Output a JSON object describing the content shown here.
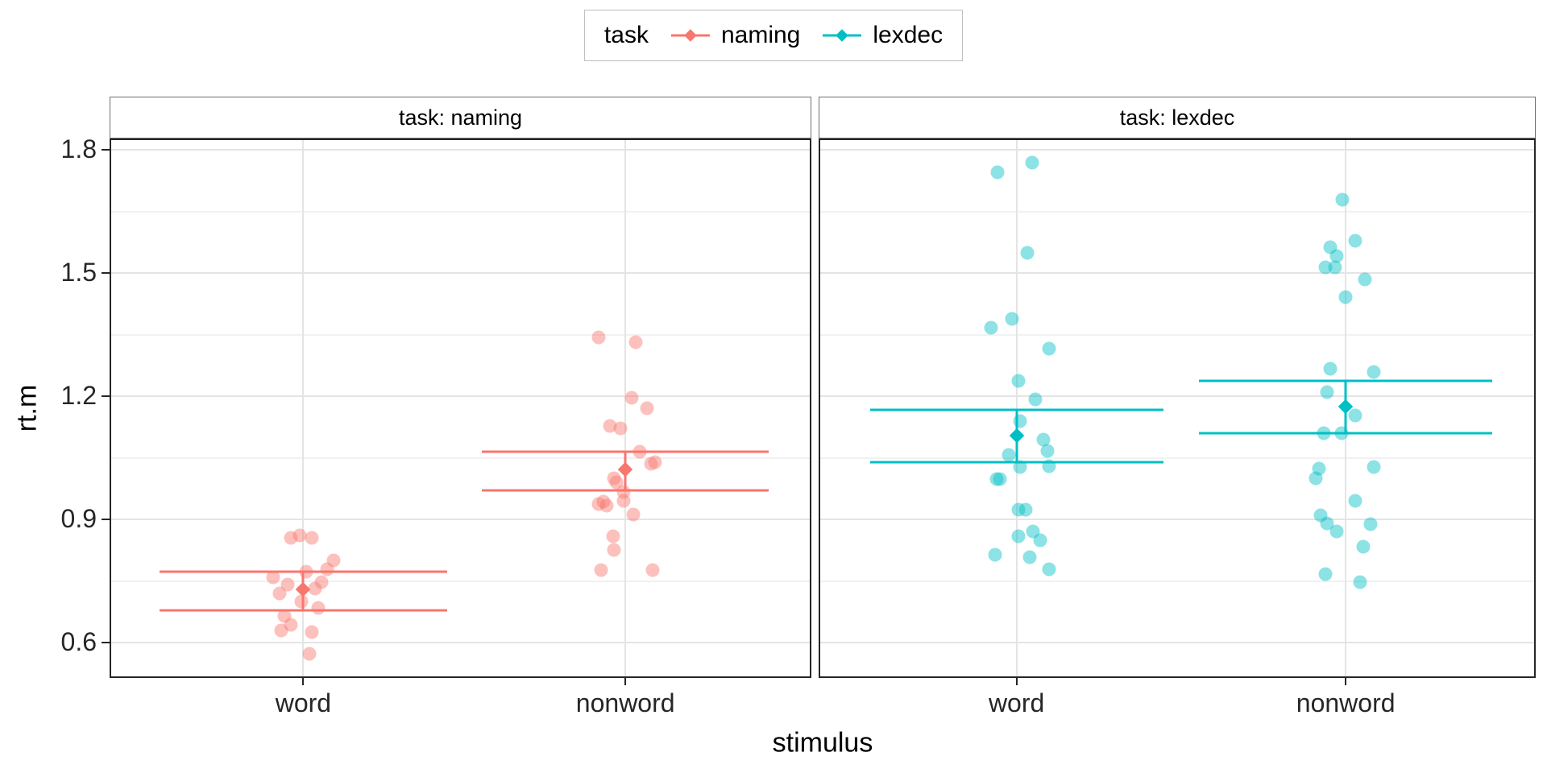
{
  "chart_data": {
    "type": "scatter",
    "subtype": "jittered-points-with-mean-ci",
    "title": "",
    "xlabel": "stimulus",
    "ylabel": "rt.m",
    "facet_variable": "task",
    "legend_title": "task",
    "legend_position": "top",
    "x_categories": [
      "word",
      "nonword"
    ],
    "y_ticks": [
      0.6,
      0.9,
      1.2,
      1.5,
      1.8
    ],
    "y_minor_ticks": [
      0.75,
      1.05,
      1.35,
      1.65
    ],
    "ylim": [
      0.51,
      1.83
    ],
    "grid": true,
    "series": [
      {
        "name": "naming",
        "facet_label": "task: naming",
        "color": "#F8766D",
        "groups": [
          {
            "x": "word",
            "mean": 0.729,
            "ci_low": 0.678,
            "ci_high": 0.773,
            "points": [
              [
                0.861,
                -0.01
              ],
              [
                0.855,
                -0.038
              ],
              [
                0.855,
                0.028
              ],
              [
                0.8,
                0.095
              ],
              [
                0.779,
                0.075
              ],
              [
                0.773,
                0.01
              ],
              [
                0.759,
                -0.095
              ],
              [
                0.747,
                0.058
              ],
              [
                0.741,
                -0.048
              ],
              [
                0.731,
                0.038
              ],
              [
                0.72,
                -0.075
              ],
              [
                0.7,
                -0.005
              ],
              [
                0.684,
                0.048
              ],
              [
                0.665,
                -0.058
              ],
              [
                0.643,
                -0.038
              ],
              [
                0.629,
                -0.068
              ],
              [
                0.625,
                0.028
              ],
              [
                0.572,
                0.02
              ]
            ]
          },
          {
            "x": "nonword",
            "mean": 1.021,
            "ci_low": 0.971,
            "ci_high": 1.065,
            "points": [
              [
                1.343,
                -0.085
              ],
              [
                1.331,
                0.033
              ],
              [
                1.196,
                0.02
              ],
              [
                1.171,
                0.068
              ],
              [
                1.128,
                -0.048
              ],
              [
                1.122,
                -0.015
              ],
              [
                1.065,
                0.045
              ],
              [
                1.039,
                0.093
              ],
              [
                1.035,
                0.08
              ],
              [
                1.0,
                -0.035
              ],
              [
                0.99,
                -0.028
              ],
              [
                0.967,
                -0.005
              ],
              [
                0.945,
                -0.005
              ],
              [
                0.943,
                -0.068
              ],
              [
                0.937,
                -0.083
              ],
              [
                0.933,
                -0.058
              ],
              [
                0.912,
                0.025
              ],
              [
                0.859,
                -0.038
              ],
              [
                0.825,
                -0.035
              ],
              [
                0.776,
                -0.075
              ],
              [
                0.776,
                0.085
              ]
            ]
          }
        ]
      },
      {
        "name": "lexdec",
        "facet_label": "task: lexdec",
        "color": "#00BFC4",
        "groups": [
          {
            "x": "word",
            "mean": 1.103,
            "ci_low": 1.039,
            "ci_high": 1.167,
            "points": [
              [
                1.769,
                0.047
              ],
              [
                1.745,
                -0.059
              ],
              [
                1.549,
                0.032
              ],
              [
                1.388,
                -0.015
              ],
              [
                1.367,
                -0.079
              ],
              [
                1.316,
                0.101
              ],
              [
                1.237,
                0.005
              ],
              [
                1.192,
                0.057
              ],
              [
                1.139,
                0.012
              ],
              [
                1.094,
                0.082
              ],
              [
                1.067,
                0.094
              ],
              [
                1.057,
                -0.025
              ],
              [
                1.029,
                0.101
              ],
              [
                1.027,
                0.012
              ],
              [
                0.998,
                -0.062
              ],
              [
                0.998,
                -0.052
              ],
              [
                0.924,
                0.005
              ],
              [
                0.924,
                0.027
              ],
              [
                0.871,
                0.05
              ],
              [
                0.859,
                0.005
              ],
              [
                0.849,
                0.072
              ],
              [
                0.814,
                -0.067
              ],
              [
                0.808,
                0.04
              ],
              [
                0.779,
                0.101
              ]
            ]
          },
          {
            "x": "nonword",
            "mean": 1.174,
            "ci_low": 1.11,
            "ci_high": 1.237,
            "points": [
              [
                1.678,
                -0.01
              ],
              [
                1.578,
                0.03
              ],
              [
                1.562,
                -0.047
              ],
              [
                1.541,
                -0.027
              ],
              [
                1.513,
                -0.062
              ],
              [
                1.513,
                -0.032
              ],
              [
                1.484,
                0.059
              ],
              [
                1.441,
                0.0
              ],
              [
                1.266,
                -0.047
              ],
              [
                1.258,
                0.087
              ],
              [
                1.21,
                -0.057
              ],
              [
                1.153,
                0.03
              ],
              [
                1.11,
                -0.067
              ],
              [
                1.11,
                -0.012
              ],
              [
                1.027,
                0.087
              ],
              [
                1.023,
                -0.082
              ],
              [
                1.0,
                -0.092
              ],
              [
                0.945,
                0.03
              ],
              [
                0.91,
                -0.077
              ],
              [
                0.89,
                -0.057
              ],
              [
                0.888,
                0.077
              ],
              [
                0.87,
                -0.027
              ],
              [
                0.833,
                0.054
              ],
              [
                0.766,
                -0.062
              ],
              [
                0.747,
                0.045
              ]
            ]
          }
        ]
      }
    ]
  }
}
